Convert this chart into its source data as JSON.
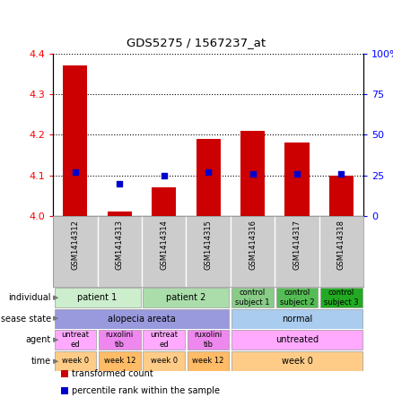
{
  "title": "GDS5275 / 1567237_at",
  "samples": [
    "GSM1414312",
    "GSM1414313",
    "GSM1414314",
    "GSM1414315",
    "GSM1414316",
    "GSM1414317",
    "GSM1414318"
  ],
  "bar_values": [
    4.37,
    4.01,
    4.07,
    4.19,
    4.21,
    4.18,
    4.1
  ],
  "dot_values": [
    27,
    20,
    25,
    27,
    26,
    26,
    26
  ],
  "ylim_left": [
    4.0,
    4.4
  ],
  "ylim_right": [
    0,
    100
  ],
  "yticks_left": [
    4.0,
    4.1,
    4.2,
    4.3,
    4.4
  ],
  "yticks_right": [
    0,
    25,
    50,
    75,
    100
  ],
  "bar_color": "#cc0000",
  "dot_color": "#0000cc",
  "bar_bottom": 4.0,
  "annotation_rows": [
    {
      "label": "individual",
      "cells": [
        {
          "text": "patient 1",
          "span": [
            0,
            1
          ],
          "color": "#cceecc"
        },
        {
          "text": "patient 2",
          "span": [
            2,
            3
          ],
          "color": "#aaddaa"
        },
        {
          "text": "control\nsubject 1",
          "span": [
            4,
            4
          ],
          "color": "#88cc88"
        },
        {
          "text": "control\nsubject 2",
          "span": [
            5,
            5
          ],
          "color": "#55bb55"
        },
        {
          "text": "control\nsubject 3",
          "span": [
            6,
            6
          ],
          "color": "#22aa22"
        }
      ]
    },
    {
      "label": "disease state",
      "cells": [
        {
          "text": "alopecia areata",
          "span": [
            0,
            3
          ],
          "color": "#9999dd"
        },
        {
          "text": "normal",
          "span": [
            4,
            6
          ],
          "color": "#aaccee"
        }
      ]
    },
    {
      "label": "agent",
      "cells": [
        {
          "text": "untreat\ned",
          "span": [
            0,
            0
          ],
          "color": "#ffaaff"
        },
        {
          "text": "ruxolini\ntib",
          "span": [
            1,
            1
          ],
          "color": "#ee88ee"
        },
        {
          "text": "untreat\ned",
          "span": [
            2,
            2
          ],
          "color": "#ffaaff"
        },
        {
          "text": "ruxolini\ntib",
          "span": [
            3,
            3
          ],
          "color": "#ee88ee"
        },
        {
          "text": "untreated",
          "span": [
            4,
            6
          ],
          "color": "#ffaaff"
        }
      ]
    },
    {
      "label": "time",
      "cells": [
        {
          "text": "week 0",
          "span": [
            0,
            0
          ],
          "color": "#ffcc88"
        },
        {
          "text": "week 12",
          "span": [
            1,
            1
          ],
          "color": "#ffbb66"
        },
        {
          "text": "week 0",
          "span": [
            2,
            2
          ],
          "color": "#ffcc88"
        },
        {
          "text": "week 12",
          "span": [
            3,
            3
          ],
          "color": "#ffbb66"
        },
        {
          "text": "week 0",
          "span": [
            4,
            6
          ],
          "color": "#ffcc88"
        }
      ]
    }
  ],
  "legend_items": [
    {
      "color": "#cc0000",
      "label": "transformed count"
    },
    {
      "color": "#0000cc",
      "label": "percentile rank within the sample"
    }
  ],
  "sample_bg_color": "#cccccc",
  "sample_divider_color": "#aaaaaa",
  "plot_bg_color": "#ffffff",
  "spine_color": "#000000"
}
